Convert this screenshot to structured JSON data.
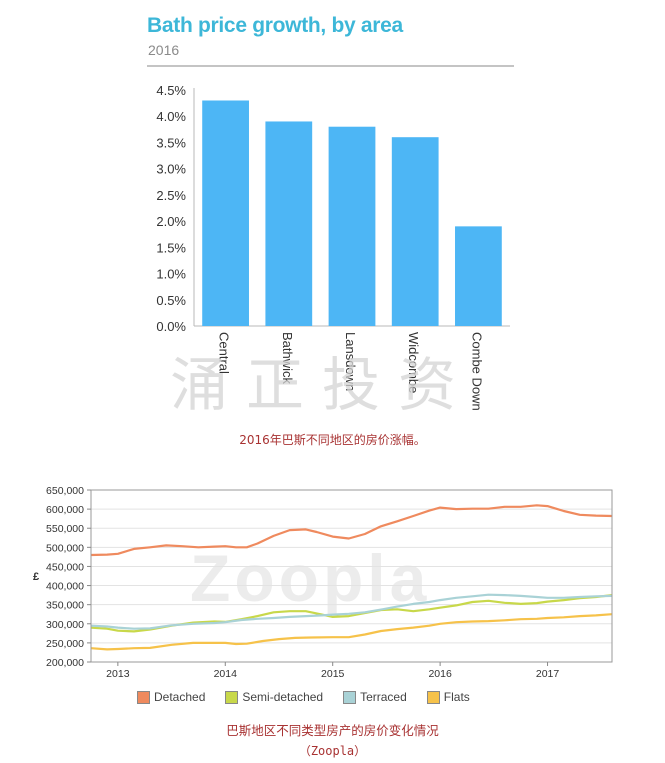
{
  "chart_data": [
    {
      "type": "bar",
      "title": "Bath price growth, by area",
      "subtitle": "2016",
      "categories": [
        "Central",
        "Bathwick",
        "Lansdown",
        "Widcombe",
        "Combe Down"
      ],
      "values": [
        4.3,
        3.9,
        3.8,
        3.6,
        1.9
      ],
      "yticks": [
        "0.0%",
        "0.5%",
        "1.0%",
        "1.5%",
        "2.0%",
        "2.5%",
        "3.0%",
        "3.5%",
        "4.0%",
        "4.5%"
      ],
      "ylim": [
        0,
        4.5
      ],
      "grid": false,
      "bar_color": "#4db6f5",
      "caption": "2016年巴斯不同地区的房价涨幅。",
      "watermark": "涌正投资"
    },
    {
      "type": "line",
      "ylabel": "£",
      "yticks": [
        "200,000",
        "250,000",
        "300,000",
        "350,000",
        "400,000",
        "450,000",
        "500,000",
        "550,000",
        "600,000",
        "650,000"
      ],
      "ylim": [
        200000,
        650000
      ],
      "xlim": [
        2012.75,
        2017.6
      ],
      "xticks": [
        {
          "label": "2013",
          "value": 2013
        },
        {
          "label": "2014",
          "value": 2014
        },
        {
          "label": "2015",
          "value": 2015
        },
        {
          "label": "2016",
          "value": 2016
        },
        {
          "label": "2017",
          "value": 2017
        }
      ],
      "grid": true,
      "legend": "bottom",
      "watermark": "Zoopla",
      "series": [
        {
          "name": "Detached",
          "color": "#ef8a5e",
          "points": [
            [
              2012.75,
              480000
            ],
            [
              2012.9,
              481000
            ],
            [
              2013.0,
              483000
            ],
            [
              2013.15,
              496000
            ],
            [
              2013.3,
              500000
            ],
            [
              2013.45,
              505000
            ],
            [
              2013.6,
              503000
            ],
            [
              2013.75,
              500000
            ],
            [
              2013.9,
              502000
            ],
            [
              2014.0,
              503000
            ],
            [
              2014.1,
              500000
            ],
            [
              2014.2,
              500000
            ],
            [
              2014.3,
              510000
            ],
            [
              2014.45,
              530000
            ],
            [
              2014.6,
              545000
            ],
            [
              2014.75,
              547000
            ],
            [
              2014.85,
              540000
            ],
            [
              2015.0,
              528000
            ],
            [
              2015.15,
              523000
            ],
            [
              2015.3,
              535000
            ],
            [
              2015.45,
              555000
            ],
            [
              2015.6,
              568000
            ],
            [
              2015.75,
              582000
            ],
            [
              2015.9,
              596000
            ],
            [
              2016.0,
              604000
            ],
            [
              2016.15,
              600000
            ],
            [
              2016.3,
              601000
            ],
            [
              2016.45,
              601000
            ],
            [
              2016.6,
              606000
            ],
            [
              2016.75,
              606000
            ],
            [
              2016.9,
              610000
            ],
            [
              2017.0,
              608000
            ],
            [
              2017.15,
              595000
            ],
            [
              2017.3,
              585000
            ],
            [
              2017.45,
              583000
            ],
            [
              2017.6,
              582000
            ]
          ]
        },
        {
          "name": "Semi-detached",
          "color": "#c8d84a",
          "points": [
            [
              2012.75,
              290000
            ],
            [
              2012.9,
              287000
            ],
            [
              2013.0,
              282000
            ],
            [
              2013.15,
              280000
            ],
            [
              2013.3,
              285000
            ],
            [
              2013.5,
              295000
            ],
            [
              2013.7,
              303000
            ],
            [
              2013.9,
              306000
            ],
            [
              2014.0,
              305000
            ],
            [
              2014.15,
              312000
            ],
            [
              2014.3,
              320000
            ],
            [
              2014.45,
              330000
            ],
            [
              2014.6,
              333000
            ],
            [
              2014.75,
              333000
            ],
            [
              2014.9,
              324000
            ],
            [
              2015.0,
              318000
            ],
            [
              2015.15,
              320000
            ],
            [
              2015.3,
              328000
            ],
            [
              2015.45,
              336000
            ],
            [
              2015.6,
              338000
            ],
            [
              2015.75,
              333000
            ],
            [
              2015.9,
              338000
            ],
            [
              2016.0,
              342000
            ],
            [
              2016.15,
              348000
            ],
            [
              2016.3,
              357000
            ],
            [
              2016.45,
              360000
            ],
            [
              2016.6,
              355000
            ],
            [
              2016.75,
              352000
            ],
            [
              2016.9,
              354000
            ],
            [
              2017.0,
              358000
            ],
            [
              2017.15,
              362000
            ],
            [
              2017.3,
              367000
            ],
            [
              2017.45,
              370000
            ],
            [
              2017.6,
              375000
            ]
          ]
        },
        {
          "name": "Terraced",
          "color": "#a9d2d6",
          "points": [
            [
              2012.75,
              295000
            ],
            [
              2012.9,
              293000
            ],
            [
              2013.0,
              290000
            ],
            [
              2013.15,
              287000
            ],
            [
              2013.3,
              288000
            ],
            [
              2013.5,
              296000
            ],
            [
              2013.7,
              300000
            ],
            [
              2013.9,
              302000
            ],
            [
              2014.0,
              304000
            ],
            [
              2014.15,
              310000
            ],
            [
              2014.3,
              313000
            ],
            [
              2014.45,
              315000
            ],
            [
              2014.6,
              318000
            ],
            [
              2014.75,
              320000
            ],
            [
              2014.9,
              322000
            ],
            [
              2015.0,
              324000
            ],
            [
              2015.15,
              326000
            ],
            [
              2015.3,
              330000
            ],
            [
              2015.45,
              337000
            ],
            [
              2015.6,
              345000
            ],
            [
              2015.75,
              352000
            ],
            [
              2015.9,
              357000
            ],
            [
              2016.0,
              362000
            ],
            [
              2016.15,
              368000
            ],
            [
              2016.3,
              372000
            ],
            [
              2016.45,
              376000
            ],
            [
              2016.6,
              375000
            ],
            [
              2016.75,
              373000
            ],
            [
              2016.9,
              370000
            ],
            [
              2017.0,
              368000
            ],
            [
              2017.15,
              368000
            ],
            [
              2017.3,
              370000
            ],
            [
              2017.45,
              372000
            ],
            [
              2017.6,
              373000
            ]
          ]
        },
        {
          "name": "Flats",
          "color": "#f6c24a",
          "points": [
            [
              2012.75,
              236000
            ],
            [
              2012.9,
              233000
            ],
            [
              2013.0,
              234000
            ],
            [
              2013.15,
              236000
            ],
            [
              2013.3,
              237000
            ],
            [
              2013.5,
              245000
            ],
            [
              2013.7,
              250000
            ],
            [
              2013.9,
              250000
            ],
            [
              2014.0,
              250000
            ],
            [
              2014.1,
              247000
            ],
            [
              2014.2,
              248000
            ],
            [
              2014.35,
              255000
            ],
            [
              2014.5,
              260000
            ],
            [
              2014.65,
              263000
            ],
            [
              2014.8,
              264000
            ],
            [
              2015.0,
              265000
            ],
            [
              2015.15,
              265000
            ],
            [
              2015.3,
              272000
            ],
            [
              2015.45,
              281000
            ],
            [
              2015.6,
              286000
            ],
            [
              2015.75,
              290000
            ],
            [
              2015.9,
              295000
            ],
            [
              2016.0,
              300000
            ],
            [
              2016.15,
              304000
            ],
            [
              2016.3,
              306000
            ],
            [
              2016.45,
              307000
            ],
            [
              2016.6,
              309000
            ],
            [
              2016.75,
              312000
            ],
            [
              2016.9,
              313000
            ],
            [
              2017.0,
              315000
            ],
            [
              2017.15,
              317000
            ],
            [
              2017.3,
              320000
            ],
            [
              2017.45,
              322000
            ],
            [
              2017.6,
              325000
            ]
          ]
        }
      ],
      "caption": "巴斯地区不同类型房产的房价变化情况",
      "source": "（Zoopla）"
    }
  ]
}
